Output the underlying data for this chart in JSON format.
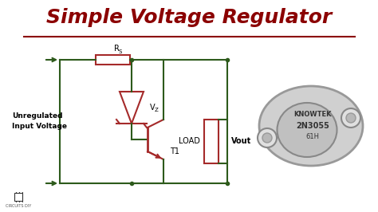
{
  "title": "Simple Voltage Regulator",
  "title_color": "#8B0000",
  "title_fontsize": 18,
  "bg_color": "#ffffff",
  "underline_color": "#8B0000",
  "circuit_color": "#2d5a1b",
  "component_color": "#a52a2a",
  "text_color": "#000000",
  "label_unregulated": "Unregulated\nInput Voltage",
  "label_rs": "RS",
  "label_vz": "Vz",
  "label_t1": "T1",
  "label_load": "LOAD",
  "label_vout": "Vout",
  "transistor_labels": [
    "KNOWTEK",
    "2N3055",
    "61H"
  ],
  "logo_text": "CIRCUITS DIY"
}
